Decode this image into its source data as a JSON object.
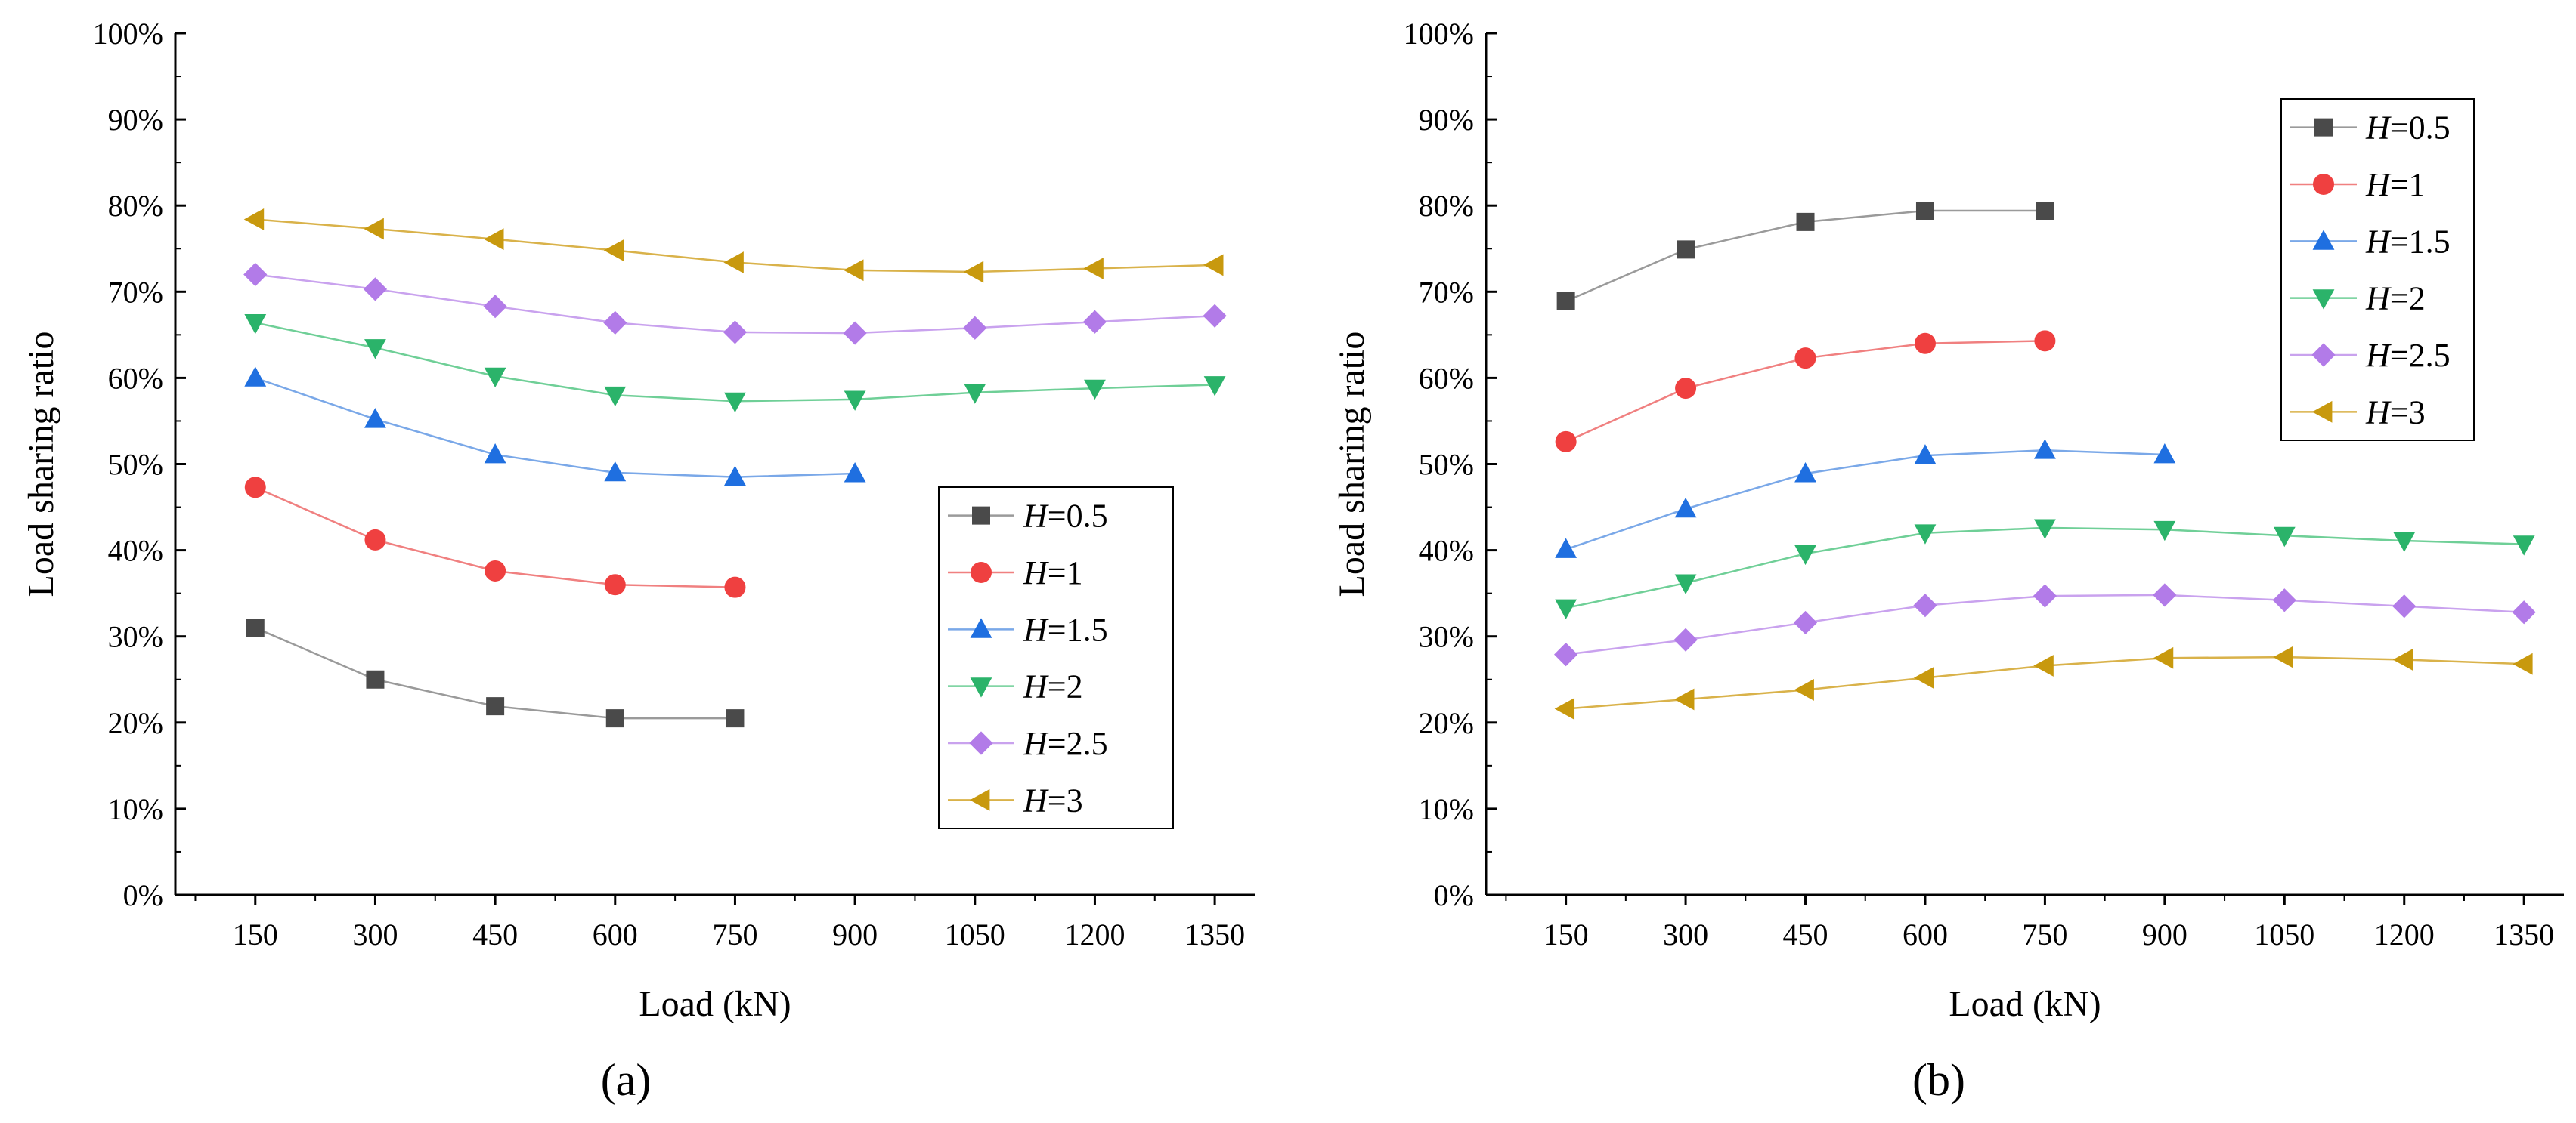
{
  "figure": {
    "panels": [
      "(a)",
      "(b)"
    ]
  },
  "chart_data": [
    {
      "type": "line",
      "panel": "(a)",
      "title": "",
      "xlabel": "Load (kN)",
      "ylabel": "Load sharing ratio",
      "x_ticks": [
        150,
        300,
        450,
        600,
        750,
        900,
        1050,
        1200,
        1350
      ],
      "x_tick_labels": [
        "150",
        "300",
        "450",
        "600",
        "750",
        "900",
        "1050",
        "1200",
        "1350"
      ],
      "xlim": [
        50,
        1400
      ],
      "ylim": [
        0,
        100
      ],
      "y_ticks": [
        0,
        10,
        20,
        30,
        40,
        50,
        60,
        70,
        80,
        90,
        100
      ],
      "y_tick_labels": [
        "0%",
        "10%",
        "20%",
        "30%",
        "40%",
        "50%",
        "60%",
        "70%",
        "80%",
        "90%",
        "100%"
      ],
      "legend_position": "bottom-right",
      "series": [
        {
          "name": "H=0.5",
          "symbol": "H",
          "value": "=0.5",
          "marker": "square",
          "line_color": "#9a9a9a",
          "marker_color": "#4a4a4a",
          "x": [
            150,
            300,
            450,
            600,
            750
          ],
          "y": [
            31.0,
            25.0,
            21.9,
            20.5,
            20.5
          ]
        },
        {
          "name": "H=1",
          "symbol": "H",
          "value": "=1",
          "marker": "circle",
          "line_color": "#f08080",
          "marker_color": "#ef4040",
          "x": [
            150,
            300,
            450,
            600,
            750
          ],
          "y": [
            47.3,
            41.2,
            37.6,
            36.0,
            35.7
          ]
        },
        {
          "name": "H=1.5",
          "symbol": "H",
          "value": "=1.5",
          "marker": "triangle-up",
          "line_color": "#7aa8e8",
          "marker_color": "#1f6fe0",
          "x": [
            150,
            300,
            450,
            600,
            750,
            900
          ],
          "y": [
            60.0,
            55.2,
            51.1,
            49.0,
            48.5,
            48.9
          ]
        },
        {
          "name": "H=2",
          "symbol": "H",
          "value": "=2",
          "marker": "triangle-down",
          "line_color": "#6fcf97",
          "marker_color": "#2bb36a",
          "x": [
            150,
            300,
            450,
            600,
            750,
            900,
            1050,
            1200,
            1350
          ],
          "y": [
            66.4,
            63.5,
            60.2,
            58.0,
            57.3,
            57.5,
            58.3,
            58.8,
            59.2
          ]
        },
        {
          "name": "H=2.5",
          "symbol": "H",
          "value": "=2.5",
          "marker": "diamond",
          "line_color": "#c9a2ee",
          "marker_color": "#b27be8",
          "x": [
            150,
            300,
            450,
            600,
            750,
            900,
            1050,
            1200,
            1350
          ],
          "y": [
            72.0,
            70.3,
            68.3,
            66.4,
            65.3,
            65.2,
            65.8,
            66.5,
            67.2
          ]
        },
        {
          "name": "H=3",
          "symbol": "H",
          "value": "=3",
          "marker": "triangle-left",
          "line_color": "#d9b24a",
          "marker_color": "#c8990e",
          "x": [
            150,
            300,
            450,
            600,
            750,
            900,
            1050,
            1200,
            1350
          ],
          "y": [
            78.4,
            77.3,
            76.1,
            74.8,
            73.4,
            72.5,
            72.3,
            72.7,
            73.1
          ]
        }
      ]
    },
    {
      "type": "line",
      "panel": "(b)",
      "title": "",
      "xlabel": "Load (kN)",
      "ylabel": "Load sharing ratio",
      "x_ticks": [
        150,
        300,
        450,
        600,
        750,
        900,
        1050,
        1200,
        1350
      ],
      "x_tick_labels": [
        "150",
        "300",
        "450",
        "600",
        "750",
        "900",
        "1050",
        "1200",
        "1350"
      ],
      "xlim": [
        50,
        1400
      ],
      "ylim": [
        0,
        100
      ],
      "y_ticks": [
        0,
        10,
        20,
        30,
        40,
        50,
        60,
        70,
        80,
        90,
        100
      ],
      "y_tick_labels": [
        "0%",
        "10%",
        "20%",
        "30%",
        "40%",
        "50%",
        "60%",
        "70%",
        "80%",
        "90%",
        "100%"
      ],
      "legend_position": "top-right",
      "series": [
        {
          "name": "H=0.5",
          "symbol": "H",
          "value": "=0.5",
          "marker": "square",
          "line_color": "#9a9a9a",
          "marker_color": "#4a4a4a",
          "x": [
            150,
            300,
            450,
            600,
            750
          ],
          "y": [
            68.9,
            74.9,
            78.1,
            79.4,
            79.4
          ]
        },
        {
          "name": "H=1",
          "symbol": "H",
          "value": "=1",
          "marker": "circle",
          "line_color": "#f08080",
          "marker_color": "#ef4040",
          "x": [
            150,
            300,
            450,
            600,
            750
          ],
          "y": [
            52.6,
            58.8,
            62.3,
            64.0,
            64.3
          ]
        },
        {
          "name": "H=1.5",
          "symbol": "H",
          "value": "=1.5",
          "marker": "triangle-up",
          "line_color": "#7aa8e8",
          "marker_color": "#1f6fe0",
          "x": [
            150,
            300,
            450,
            600,
            750,
            900
          ],
          "y": [
            40.1,
            44.8,
            48.9,
            51.0,
            51.6,
            51.1
          ]
        },
        {
          "name": "H=2",
          "symbol": "H",
          "value": "=2",
          "marker": "triangle-down",
          "line_color": "#6fcf97",
          "marker_color": "#2bb36a",
          "x": [
            150,
            300,
            450,
            600,
            750,
            900,
            1050,
            1200,
            1350
          ],
          "y": [
            33.3,
            36.2,
            39.6,
            42.0,
            42.6,
            42.4,
            41.7,
            41.1,
            40.7
          ]
        },
        {
          "name": "H=2.5",
          "symbol": "H",
          "value": "=2.5",
          "marker": "diamond",
          "line_color": "#c9a2ee",
          "marker_color": "#b27be8",
          "x": [
            150,
            300,
            450,
            600,
            750,
            900,
            1050,
            1200,
            1350
          ],
          "y": [
            27.9,
            29.6,
            31.6,
            33.6,
            34.7,
            34.8,
            34.2,
            33.5,
            32.8
          ]
        },
        {
          "name": "H=3",
          "symbol": "H",
          "value": "=3",
          "marker": "triangle-left",
          "line_color": "#d9b24a",
          "marker_color": "#c8990e",
          "x": [
            150,
            300,
            450,
            600,
            750,
            900,
            1050,
            1200,
            1350
          ],
          "y": [
            21.6,
            22.7,
            23.8,
            25.2,
            26.6,
            27.5,
            27.6,
            27.3,
            26.8
          ]
        }
      ]
    }
  ]
}
